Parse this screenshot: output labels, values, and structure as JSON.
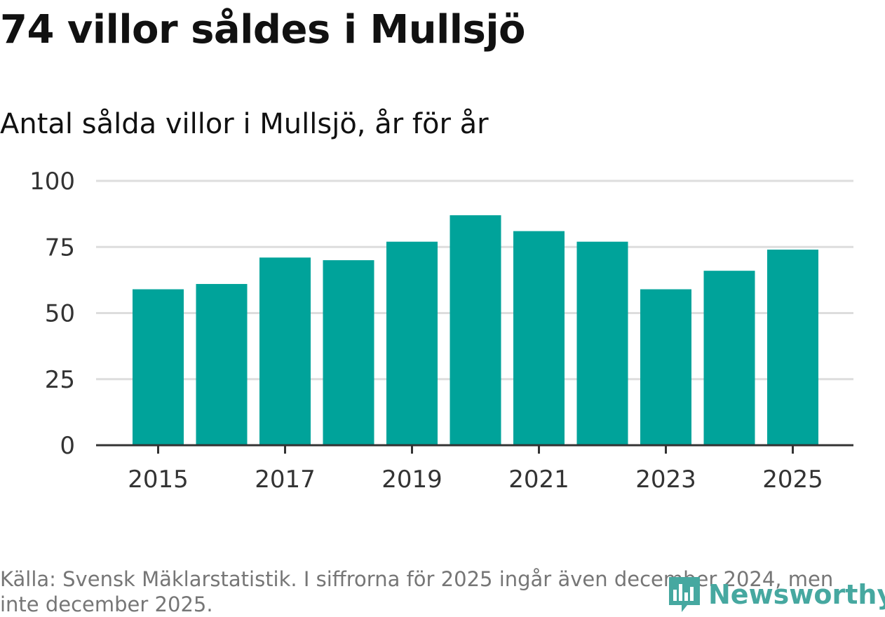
{
  "title": "74 villor såldes i Mullsjö",
  "subtitle": "Antal sålda villor i Mullsjö, år för år",
  "chart_data": {
    "type": "bar",
    "title": "Antal sålda villor i Mullsjö, år för år",
    "xlabel": "",
    "ylabel": "",
    "categories": [
      "2015",
      "2016",
      "2017",
      "2018",
      "2019",
      "2020",
      "2021",
      "2022",
      "2023",
      "2024",
      "2025"
    ],
    "values": [
      59,
      61,
      71,
      70,
      77,
      87,
      81,
      77,
      59,
      66,
      74
    ],
    "ylim": [
      0,
      100
    ],
    "yticks": [
      0,
      25,
      50,
      75,
      100
    ],
    "xticks": [
      "2015",
      "2017",
      "2019",
      "2021",
      "2023",
      "2025"
    ],
    "grid": true,
    "bar_color": "#00a39a"
  },
  "source": "Källa: Svensk Mäklarstatistik. I siffrorna för 2025 ingår även december 2024, men inte december 2025.",
  "logo": {
    "text": "Newsworthy",
    "icon": "newsworthy-logo-icon",
    "color": "#46a8a0"
  }
}
